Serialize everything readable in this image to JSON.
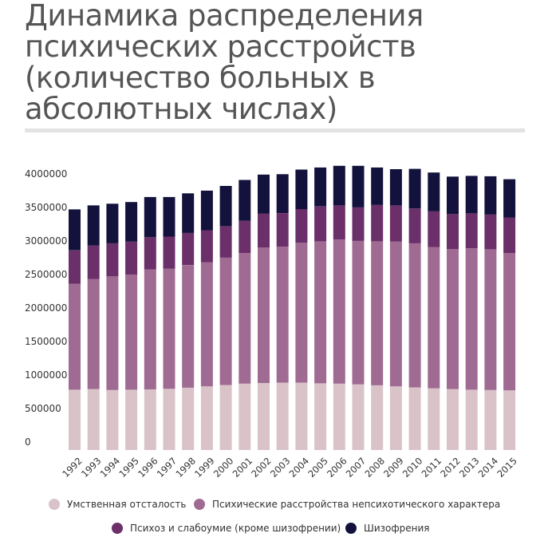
{
  "chart_data": {
    "type": "bar",
    "stacked": true,
    "title": "Динамика распределения психических расстройств (количество больных в абсолютных числах)",
    "xlabel": "",
    "ylabel": "",
    "ylim": [
      0,
      4000000
    ],
    "y_ticks": [
      "0",
      "500000",
      "1000000",
      "1500000",
      "2000000",
      "2500000",
      "3000000",
      "3500000",
      "4000000"
    ],
    "grid": false,
    "legend_position": "bottom",
    "categories": [
      "1992",
      "1993",
      "1994",
      "1995",
      "1996",
      "1997",
      "1998",
      "1999",
      "2000",
      "2001",
      "2002",
      "2003",
      "2004",
      "2005",
      "2006",
      "2007",
      "2008",
      "2009",
      "2010",
      "2011",
      "2012",
      "2013",
      "2014",
      "2015"
    ],
    "series": [
      {
        "name": "Умственная отсталость",
        "color": "#d9c3c9",
        "values": [
          900000,
          910000,
          895000,
          900000,
          905000,
          915000,
          930000,
          950000,
          970000,
          990000,
          1000000,
          1005000,
          1005000,
          995000,
          990000,
          980000,
          965000,
          950000,
          935000,
          920000,
          910000,
          900000,
          895000,
          890000
        ]
      },
      {
        "name": "Психические расстройства непсихотического характера",
        "color": "#a06b93",
        "values": [
          1580000,
          1640000,
          1700000,
          1720000,
          1790000,
          1790000,
          1830000,
          1850000,
          1900000,
          1950000,
          2020000,
          2030000,
          2090000,
          2120000,
          2150000,
          2140000,
          2150000,
          2160000,
          2150000,
          2110000,
          2090000,
          2110000,
          2100000,
          2050000
        ]
      },
      {
        "name": "Психоз и слабоумие (кроме шизофрении)",
        "color": "#6b2f69",
        "values": [
          500000,
          500000,
          490000,
          490000,
          480000,
          480000,
          480000,
          480000,
          470000,
          480000,
          510000,
          500000,
          500000,
          520000,
          510000,
          500000,
          540000,
          540000,
          520000,
          530000,
          520000,
          520000,
          520000,
          530000
        ]
      },
      {
        "name": "Шизофрения",
        "color": "#13123c",
        "values": [
          610000,
          600000,
          590000,
          590000,
          600000,
          590000,
          590000,
          590000,
          600000,
          610000,
          580000,
          580000,
          590000,
          580000,
          590000,
          620000,
          560000,
          540000,
          590000,
          580000,
          560000,
          560000,
          570000,
          570000
        ]
      }
    ]
  }
}
